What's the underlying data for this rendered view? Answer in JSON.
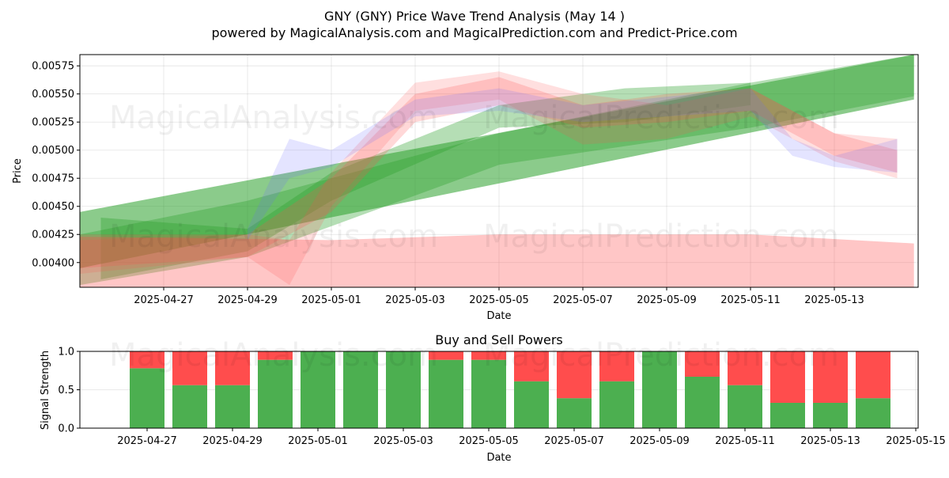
{
  "title_line1": "GNY (GNY) Price Wave Trend Analysis (May 14 )",
  "title_line2": "powered by MagicalAnalysis.com and MagicalPrediction.com and Predict-Price.com",
  "watermarks": [
    "MagicalAnalysis.com",
    "MagicalPrediction.com"
  ],
  "colors": {
    "green": "#2ca02c",
    "red": "#ff4d4d",
    "blue": "#6b6bff",
    "bar_green": "#4caf50",
    "bar_red": "#ff4d4d"
  },
  "chart_data": [
    {
      "type": "area",
      "title": "",
      "xlabel": "Date",
      "ylabel": "Price",
      "x_range": [
        "2025-04-25",
        "2025-05-15"
      ],
      "ylim": [
        0.00378,
        0.00585
      ],
      "x_ticks": [
        "2025-04-27",
        "2025-04-29",
        "2025-05-01",
        "2025-05-03",
        "2025-05-05",
        "2025-05-07",
        "2025-05-09",
        "2025-05-11",
        "2025-05-13"
      ],
      "y_ticks": [
        "0.00400",
        "0.00425",
        "0.00450",
        "0.00475",
        "0.00500",
        "0.00525",
        "0.00550",
        "0.00575"
      ],
      "grid": true,
      "series": [
        {
          "color": "green",
          "x": [
            "2025-04-25",
            "2025-05-14.9"
          ],
          "lower": [
            0.00395,
            0.00545
          ],
          "upper": [
            0.00445,
            0.00585
          ]
        },
        {
          "color": "green",
          "x": [
            "2025-04-25",
            "2025-04-29",
            "2025-05-05",
            "2025-05-11",
            "2025-05-14.9"
          ],
          "lower": [
            0.0038,
            0.00405,
            0.00487,
            0.0052,
            0.00548
          ],
          "upper": [
            0.00425,
            0.00455,
            0.00515,
            0.0056,
            0.00585
          ]
        },
        {
          "color": "green",
          "x": [
            "2025-04-25.5",
            "2025-04-29",
            "2025-05-01",
            "2025-05-05",
            "2025-05-08",
            "2025-05-11"
          ],
          "lower": [
            0.00385,
            0.0041,
            0.00455,
            0.0052,
            0.00525,
            0.0054
          ],
          "upper": [
            0.0044,
            0.0043,
            0.0048,
            0.0054,
            0.00555,
            0.0056
          ]
        },
        {
          "color": "red",
          "x": [
            "2025-04-25",
            "2025-04-29",
            "2025-05-01",
            "2025-05-03",
            "2025-05-05",
            "2025-05-07",
            "2025-05-09",
            "2025-05-11",
            "2025-05-13",
            "2025-05-14.5"
          ],
          "lower": [
            0.00395,
            0.00405,
            0.00445,
            0.00525,
            0.0054,
            0.0052,
            0.00525,
            0.00535,
            0.00495,
            0.0048
          ],
          "upper": [
            0.00425,
            0.00425,
            0.00475,
            0.0055,
            0.00565,
            0.0054,
            0.0055,
            0.00555,
            0.00515,
            0.005
          ]
        },
        {
          "color": "red",
          "x": [
            "2025-04-25",
            "2025-04-29",
            "2025-04-30",
            "2025-05-01",
            "2025-05-03",
            "2025-05-05",
            "2025-05-07",
            "2025-05-09",
            "2025-05-11",
            "2025-05-13",
            "2025-05-14.5"
          ],
          "lower": [
            0.0039,
            0.00405,
            0.0038,
            0.0045,
            0.00535,
            0.00545,
            0.00505,
            0.0051,
            0.0053,
            0.0049,
            0.00475
          ],
          "upper": [
            0.0042,
            0.00425,
            0.0042,
            0.0048,
            0.0056,
            0.0057,
            0.0055,
            0.0054,
            0.00555,
            0.00515,
            0.0051
          ]
        },
        {
          "color": "blue",
          "x": [
            "2025-04-29",
            "2025-04-30",
            "2025-05-01",
            "2025-05-03",
            "2025-05-05",
            "2025-05-07",
            "2025-05-11",
            "2025-05-12",
            "2025-05-13",
            "2025-05-14.5"
          ],
          "lower": [
            0.0042,
            0.00475,
            0.00485,
            0.0053,
            0.00535,
            0.00525,
            0.00535,
            0.00495,
            0.00485,
            0.0048
          ],
          "upper": [
            0.0043,
            0.0051,
            0.005,
            0.00545,
            0.00555,
            0.0054,
            0.00555,
            0.0051,
            0.00495,
            0.0051
          ]
        },
        {
          "color": "red",
          "x": [
            "2025-04-25",
            "2025-05-01",
            "2025-05-05",
            "2025-05-11",
            "2025-05-14.9"
          ],
          "lower": [
            0.00378,
            0.00378,
            0.00378,
            0.00378,
            0.00378
          ],
          "upper": [
            0.00423,
            0.0042,
            0.00425,
            0.00425,
            0.00417
          ]
        }
      ]
    },
    {
      "type": "bar",
      "title": "Buy and Sell Powers",
      "xlabel": "Date",
      "ylabel": "Signal Strength",
      "ylim": [
        0,
        1
      ],
      "x_range": [
        "2025-04-25",
        "2025-05-15"
      ],
      "x_ticks": [
        "2025-04-27",
        "2025-04-29",
        "2025-05-01",
        "2025-05-03",
        "2025-05-05",
        "2025-05-07",
        "2025-05-09",
        "2025-05-11",
        "2025-05-13",
        "2025-05-15"
      ],
      "y_ticks": [
        "0.0",
        "0.5",
        "1.0"
      ],
      "grid": true,
      "categories": [
        "2025-04-27",
        "2025-04-28",
        "2025-04-29",
        "2025-04-30",
        "2025-05-01",
        "2025-05-02",
        "2025-05-03",
        "2025-05-04",
        "2025-05-05",
        "2025-05-06",
        "2025-05-07",
        "2025-05-08",
        "2025-05-09",
        "2025-05-10",
        "2025-05-11",
        "2025-05-12",
        "2025-05-13",
        "2025-05-14"
      ],
      "series": [
        {
          "color": "bar_green",
          "values": [
            0.78,
            0.56,
            0.56,
            0.89,
            1.0,
            1.0,
            1.0,
            0.89,
            0.89,
            0.61,
            0.39,
            0.61,
            1.0,
            0.67,
            0.56,
            0.33,
            0.33,
            0.39
          ]
        },
        {
          "color": "bar_red",
          "values": [
            0.22,
            0.44,
            0.44,
            0.11,
            0.0,
            0.0,
            0.0,
            0.11,
            0.11,
            0.39,
            0.61,
            0.39,
            0.0,
            0.33,
            0.44,
            0.67,
            0.67,
            0.61
          ]
        }
      ]
    }
  ]
}
